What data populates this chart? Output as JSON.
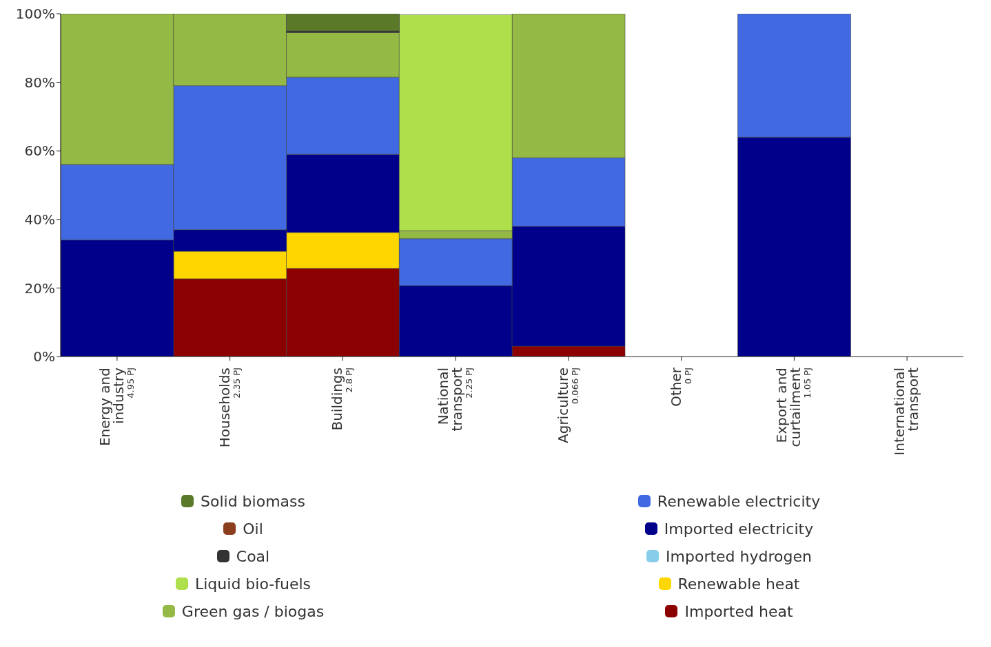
{
  "chart_data": {
    "type": "bar",
    "stacked": true,
    "categories": [
      "Energy and\nindustry$_{4.95 PJ}$",
      "Households$_{2.35 PJ}$",
      "Buildings$_{2.8 PJ}$",
      "National\ntransport$_{2.25 PJ}$",
      "Agriculture$_{0.066 PJ}$",
      "Other$_{0 PJ}$",
      "Export and\ncurtailment$_{1.05 PJ}$",
      "International\ntransport"
    ],
    "series": [
      {
        "name": "Imported heat",
        "color": "#8b0000",
        "values": [
          0,
          22.7,
          25.7,
          0,
          3,
          0,
          0,
          0
        ]
      },
      {
        "name": "Renewable heat",
        "color": "#ffd700",
        "values": [
          0,
          8,
          10.5,
          0,
          0,
          0,
          0,
          0
        ]
      },
      {
        "name": "Imported hydrogen",
        "color": "#87ceeb",
        "values": [
          0,
          0,
          0,
          null,
          0,
          0,
          0,
          0
        ]
      },
      {
        "name": "Imported electricity",
        "color": "#00008b",
        "values": [
          34,
          6.3,
          22.8,
          20.7,
          35,
          0,
          64,
          0
        ]
      },
      {
        "name": "Renewable electricity",
        "color": "#4169e1",
        "values": [
          22,
          42,
          22.5,
          13.7,
          20,
          0,
          36,
          0
        ]
      },
      {
        "name": "Green gas / biogas",
        "color": "#94b944",
        "values": [
          44,
          21,
          13,
          2.3,
          42,
          0,
          0,
          0
        ]
      },
      {
        "name": "Liquid bio-fuels",
        "color": "#aee04c",
        "values": [
          0,
          0,
          0,
          63,
          0,
          0,
          0,
          0
        ]
      },
      {
        "name": "Coal",
        "color": "#333333",
        "values": [
          0,
          0,
          0.5,
          0,
          0,
          0,
          0,
          0
        ]
      },
      {
        "name": "Oil",
        "color": "#8b3e1e",
        "values": [
          0,
          0,
          0,
          0,
          0,
          0,
          0,
          0
        ]
      },
      {
        "name": "Solid biomass",
        "color": "#5a7a2a",
        "values": [
          0,
          0,
          5,
          0,
          0,
          0,
          0,
          0
        ]
      }
    ],
    "ylim": [
      0,
      100
    ],
    "yticks": [
      {
        "value": 0,
        "label": "0%"
      },
      {
        "value": 20,
        "label": "20%"
      },
      {
        "value": 40,
        "label": "40%"
      },
      {
        "value": 60,
        "label": "60%"
      },
      {
        "value": 80,
        "label": "80%"
      },
      {
        "value": 100,
        "label": "100%"
      }
    ],
    "grid": false,
    "legend": "bottom"
  }
}
